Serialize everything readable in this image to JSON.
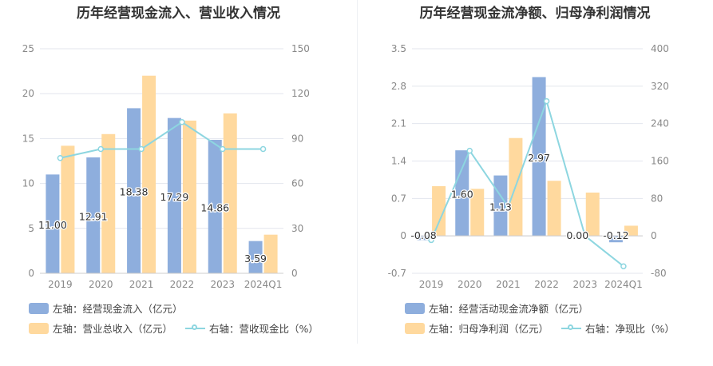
{
  "colors": {
    "bar_blue": "#8eaedd",
    "bar_orange": "#ffd99e",
    "line_cyan": "#8dd6e0",
    "grid": "#e3e6ee",
    "axis_text": "#888888"
  },
  "left_chart": {
    "title": "历年经营现金流入、营业收入情况",
    "legend": {
      "series1": "左轴：经营现金流入（亿元）",
      "series2": "左轴：营业总收入（亿元）",
      "series3": "右轴：营收现金比（%）"
    }
  },
  "right_chart": {
    "title": "历年经营现金流净额、归母净利润情况",
    "legend": {
      "series1": "左轴：经营活动现金流净额（亿元）",
      "series2": "左轴：归母净利润（亿元）",
      "series3": "右轴：净现比（%）"
    }
  },
  "chart_data": [
    {
      "type": "bar",
      "title": "历年经营现金流入、营业收入情况",
      "categories": [
        "2019",
        "2020",
        "2021",
        "2022",
        "2023",
        "2024Q1"
      ],
      "left_axis": {
        "ylim": [
          0,
          25
        ],
        "ticks": [
          "0",
          "5",
          "10",
          "15",
          "20",
          "25"
        ]
      },
      "right_axis": {
        "ylim": [
          0,
          150
        ],
        "ticks": [
          "0",
          "30",
          "60",
          "90",
          "120",
          "150"
        ]
      },
      "grid": true,
      "legend_position": "bottom-left",
      "series": [
        {
          "name": "左轴：经营现金流入（亿元）",
          "type": "bar",
          "axis": "left",
          "values": [
            11.0,
            12.91,
            18.38,
            17.29,
            14.86,
            3.59
          ],
          "labels": [
            "11.00",
            "12.91",
            "18.38",
            "17.29",
            "14.86",
            "3.59"
          ]
        },
        {
          "name": "左轴：营业总收入（亿元）",
          "type": "bar",
          "axis": "left",
          "values": [
            14.2,
            15.5,
            22.0,
            17.0,
            17.8,
            4.3
          ]
        },
        {
          "name": "右轴：营收现金比（%）",
          "type": "line",
          "axis": "right",
          "values": [
            77,
            83,
            83,
            101,
            83,
            83
          ]
        }
      ]
    },
    {
      "type": "bar",
      "title": "历年经营现金流净额、归母净利润情况",
      "categories": [
        "2019",
        "2020",
        "2021",
        "2022",
        "2023",
        "2024Q1"
      ],
      "left_axis": {
        "ylim": [
          -0.7,
          3.5
        ],
        "ticks": [
          "-0.7",
          "0",
          "0.7",
          "1.4",
          "2.1",
          "2.8",
          "3.5"
        ]
      },
      "right_axis": {
        "ylim": [
          -80,
          400
        ],
        "ticks": [
          "-80",
          "0",
          "80",
          "160",
          "240",
          "320",
          "400"
        ]
      },
      "grid": true,
      "legend_position": "bottom-left",
      "series": [
        {
          "name": "左轴：经营活动现金流净额（亿元）",
          "type": "bar",
          "axis": "left",
          "values": [
            -0.08,
            1.6,
            1.13,
            2.97,
            0.0,
            -0.12
          ],
          "labels": [
            "-0.08",
            "1.60",
            "1.13",
            "2.97",
            "0.00",
            "-0.12"
          ]
        },
        {
          "name": "左轴：归母净利润（亿元）",
          "type": "bar",
          "axis": "left",
          "values": [
            0.93,
            0.88,
            1.83,
            1.03,
            0.81,
            0.19
          ]
        },
        {
          "name": "右轴：净现比（%）",
          "type": "line",
          "axis": "right",
          "values": [
            -9,
            182,
            62,
            288,
            0,
            -65
          ]
        }
      ]
    }
  ]
}
